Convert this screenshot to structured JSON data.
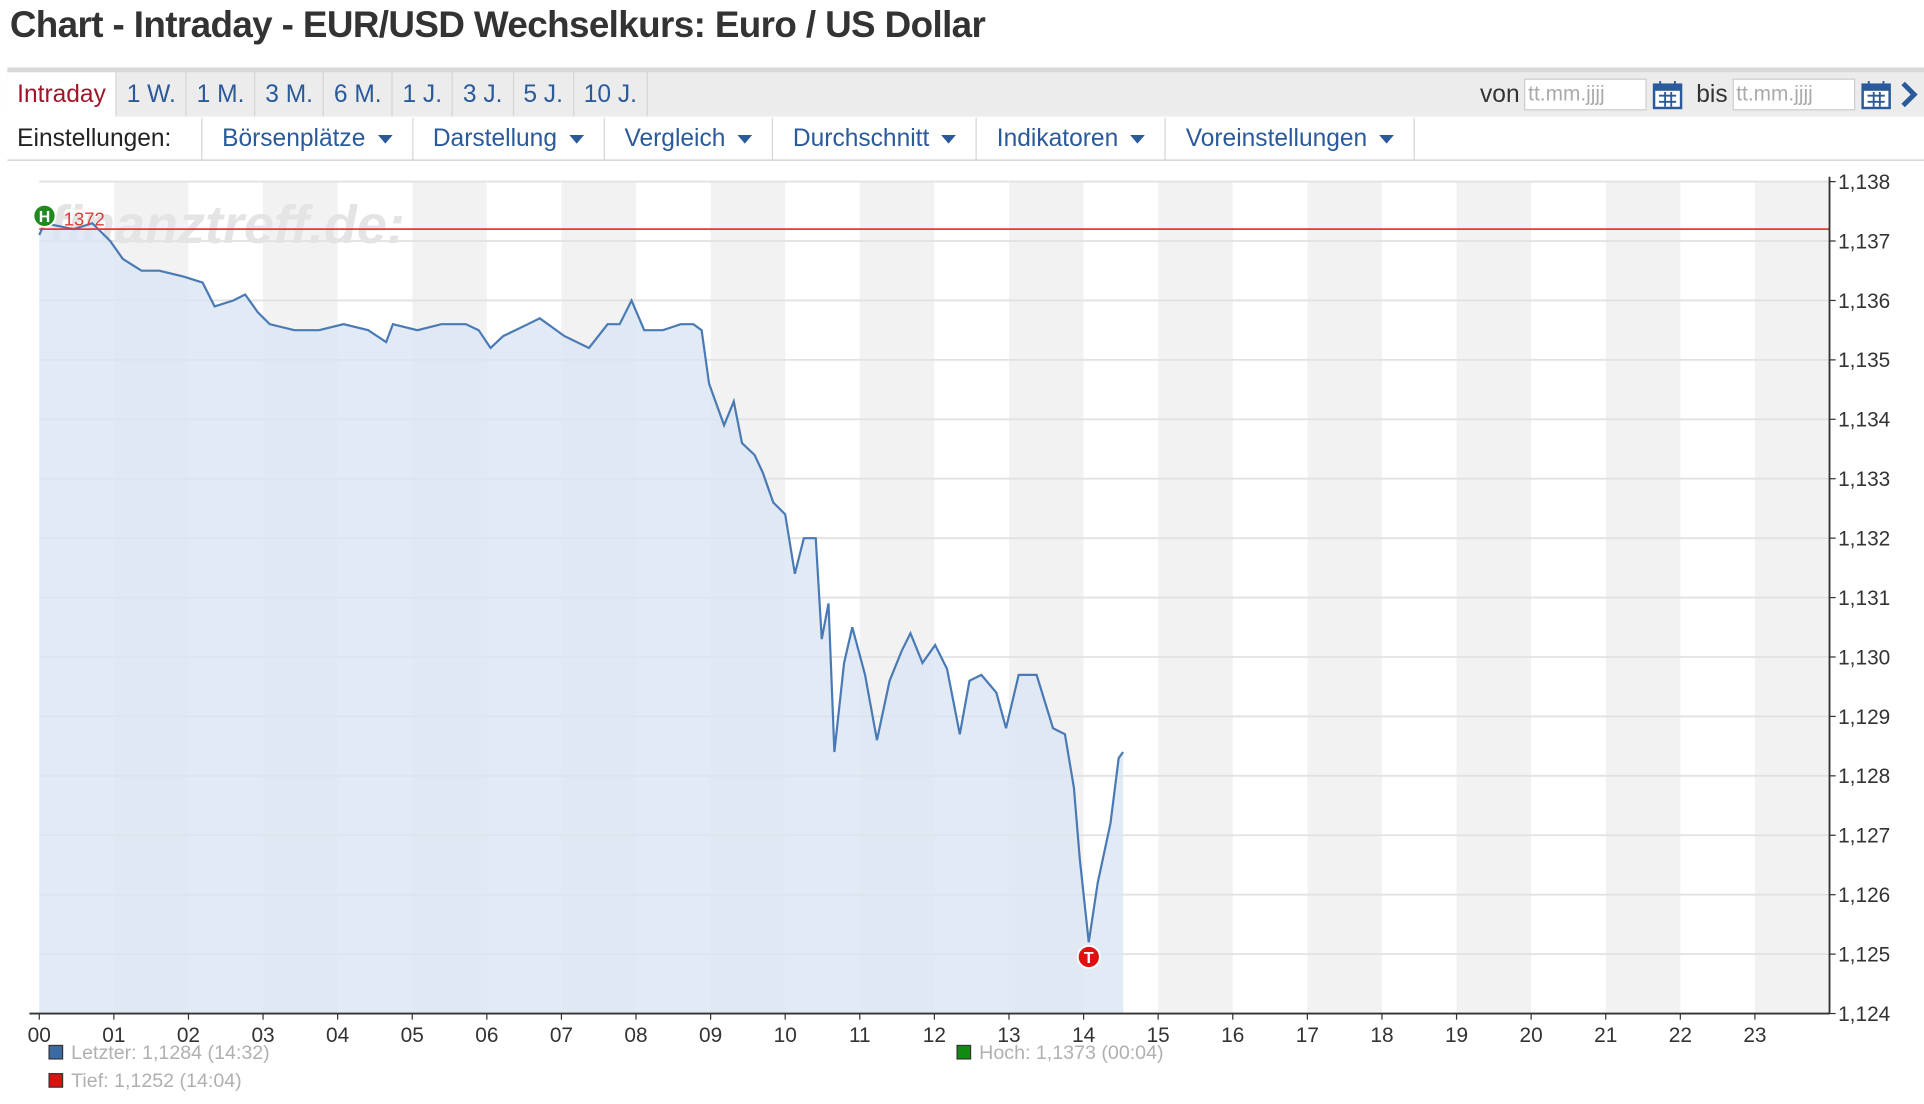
{
  "header": {
    "title": "Chart - Intraday - EUR/USD Wechselkurs: Euro / US Dollar"
  },
  "tabs": {
    "items": [
      "Intraday",
      "1 W.",
      "1 M.",
      "3 M.",
      "6 M.",
      "1 J.",
      "3 J.",
      "5 J.",
      "10 J."
    ],
    "active": 0
  },
  "date_range": {
    "from_label": "von",
    "to_label": "bis",
    "placeholder": "tt.mm.jjjj"
  },
  "settings": {
    "label": "Einstellungen:",
    "menus": [
      "Börsenplätze",
      "Darstellung",
      "Vergleich",
      "Durchschnitt",
      "Indikatoren",
      "Voreinstellungen"
    ]
  },
  "chart_data": {
    "type": "line",
    "watermark": "finanztreff.de:",
    "color": "#4a7ab5",
    "fill": "#dbe6f3",
    "x": [
      0,
      0.07,
      0.46,
      0.71,
      0.95,
      1.12,
      1.37,
      1.61,
      1.94,
      2.19,
      2.35,
      2.6,
      2.76,
      2.93,
      3.09,
      3.42,
      3.75,
      4.08,
      4.41,
      4.65,
      4.74,
      5.07,
      5.39,
      5.72,
      5.89,
      6.05,
      6.22,
      6.55,
      6.71,
      7.04,
      7.37,
      7.62,
      7.78,
      7.94,
      8.11,
      8.36,
      8.6,
      8.77,
      8.88,
      8.98,
      9.18,
      9.31,
      9.42,
      9.59,
      9.7,
      9.84,
      10,
      10.13,
      10.25,
      10.41,
      10.49,
      10.58,
      10.66,
      10.79,
      10.9,
      11.07,
      11.23,
      11.4,
      11.56,
      11.68,
      11.84,
      12.01,
      12.17,
      12.34,
      12.47,
      12.63,
      12.83,
      12.96,
      13.13,
      13.37,
      13.59,
      13.75,
      13.87,
      13.95,
      14.07,
      14.19,
      14.36,
      14.47,
      14.53
    ],
    "values": [
      1.1371,
      1.1373,
      1.1372,
      1.1373,
      1.137,
      1.1367,
      1.1365,
      1.1365,
      1.1364,
      1.1363,
      1.1359,
      1.136,
      1.1361,
      1.1358,
      1.1356,
      1.1355,
      1.1355,
      1.1356,
      1.1355,
      1.1353,
      1.1356,
      1.1355,
      1.1356,
      1.1356,
      1.1355,
      1.1352,
      1.1354,
      1.1356,
      1.1357,
      1.1354,
      1.1352,
      1.1356,
      1.1356,
      1.136,
      1.1355,
      1.1355,
      1.1356,
      1.1356,
      1.1355,
      1.1346,
      1.1339,
      1.1343,
      1.1336,
      1.1334,
      1.1331,
      1.1326,
      1.1324,
      1.1314,
      1.132,
      1.132,
      1.1303,
      1.1309,
      1.1284,
      1.1299,
      1.1305,
      1.1297,
      1.1286,
      1.1296,
      1.1301,
      1.1304,
      1.1299,
      1.1302,
      1.1298,
      1.1287,
      1.1296,
      1.1297,
      1.1294,
      1.1288,
      1.1297,
      1.1297,
      1.1288,
      1.1287,
      1.1278,
      1.1266,
      1.1252,
      1.1262,
      1.1272,
      1.1283,
      1.1284
    ],
    "xlim": [
      0,
      24
    ],
    "xticks": [
      {
        "value": 0,
        "label": "00"
      },
      {
        "value": 1,
        "label": "01"
      },
      {
        "value": 2,
        "label": "02"
      },
      {
        "value": 3,
        "label": "03"
      },
      {
        "value": 4,
        "label": "04"
      },
      {
        "value": 5,
        "label": "05"
      },
      {
        "value": 6,
        "label": "06"
      },
      {
        "value": 7,
        "label": "07"
      },
      {
        "value": 8,
        "label": "08"
      },
      {
        "value": 9,
        "label": "09"
      },
      10,
      11,
      12,
      13,
      14,
      15,
      16,
      17,
      18,
      19,
      20,
      21,
      22,
      23
    ],
    "ylim": [
      1.124,
      1.138
    ],
    "yticks": [
      {
        "value": 1.124,
        "label": "1,124"
      },
      {
        "value": 1.125,
        "label": "1,125"
      },
      {
        "value": 1.126,
        "label": "1,126"
      },
      {
        "value": 1.127,
        "label": "1,127"
      },
      {
        "value": 1.128,
        "label": "1,128"
      },
      {
        "value": 1.129,
        "label": "1,129"
      },
      {
        "value": 1.13,
        "label": "1,130"
      },
      {
        "value": 1.131,
        "label": "1,131"
      },
      {
        "value": 1.132,
        "label": "1,132"
      },
      {
        "value": 1.133,
        "label": "1,133"
      },
      {
        "value": 1.134,
        "label": "1,134"
      },
      {
        "value": 1.135,
        "label": "1,135"
      },
      {
        "value": 1.136,
        "label": "1,136"
      },
      {
        "value": 1.137,
        "label": "1,137"
      },
      {
        "value": 1.138,
        "label": "1,138"
      }
    ],
    "grid": true,
    "reference_line": {
      "value": 1.1372,
      "label": "1372",
      "color": "#e03a3a"
    },
    "markers": [
      {
        "label": "H",
        "x": 0.07,
        "value": 1.1373,
        "color": "#1f8a1f"
      },
      {
        "label": "T",
        "x": 14.07,
        "value": 1.1252,
        "color": "#e01010"
      }
    ],
    "stats": [
      {
        "label": "Letzter: 1,1284 (14:32)",
        "color": "#3b6aa5"
      },
      {
        "label": "Tief: 1,1252 (14:04)",
        "color": "#e01010"
      },
      {
        "label": "Hoch: 1,1373 (00:04)",
        "color": "#128a12"
      }
    ]
  }
}
